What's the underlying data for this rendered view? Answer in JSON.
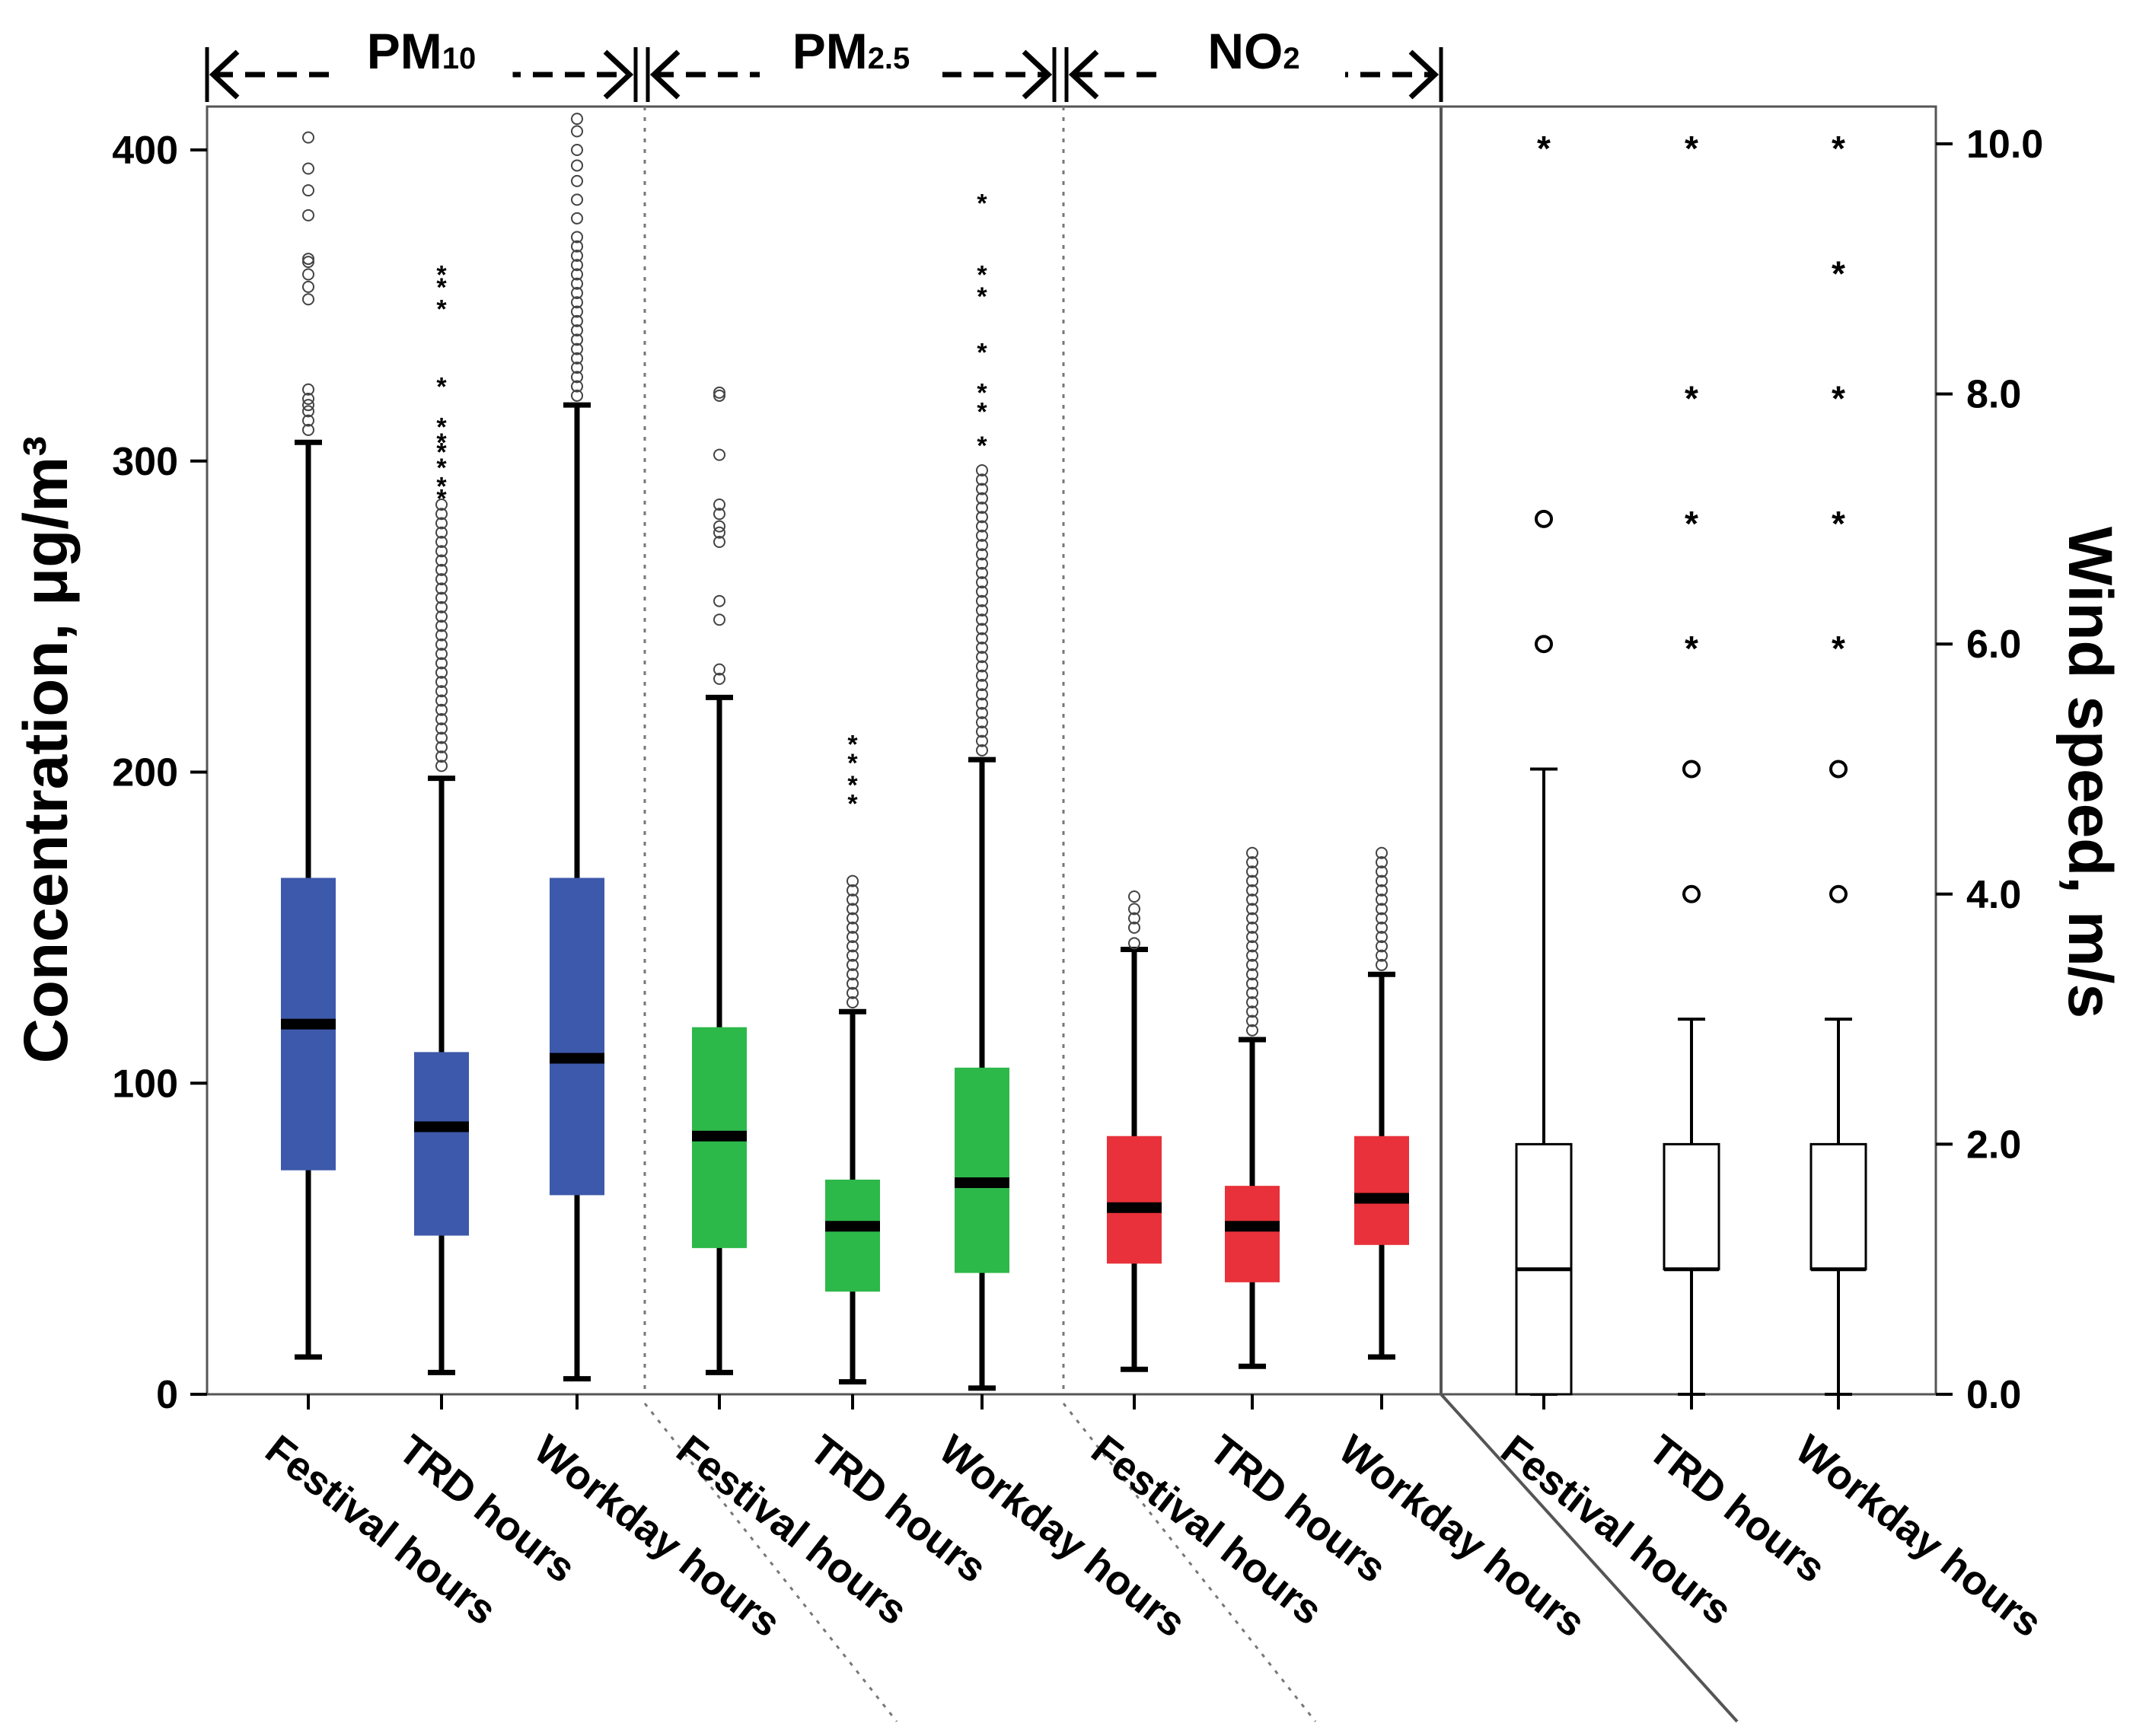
{
  "chart_data": {
    "type": "boxplot",
    "left_axis": {
      "label": "Concentration, μg/m³",
      "range": [
        0,
        400
      ],
      "ticks": [
        0,
        100,
        200,
        300,
        400
      ],
      "tick_labels": [
        "0",
        "100",
        "200",
        "300",
        "400"
      ]
    },
    "right_axis": {
      "label": "Wind speed, m/s",
      "range": [
        0,
        10
      ],
      "ticks": [
        0,
        2,
        4,
        6,
        8,
        10
      ],
      "tick_labels": [
        "0.0",
        "2.0",
        "4.0",
        "6.0",
        "8.0",
        "10.0"
      ]
    },
    "category_labels": [
      "Festival hours",
      "TRD hours",
      "Workday hours"
    ],
    "pollutant_groups": [
      {
        "name_main": "PM",
        "name_sub": "10",
        "color": "#3d59ab",
        "boxes": [
          {
            "category": "Festival hours",
            "whisker_low": 12,
            "q1": 72,
            "median": 119,
            "q3": 166,
            "whisker_high": 306,
            "outliers_circle": [
              310,
              313,
              316,
              318,
              320,
              323,
              352,
              356,
              360,
              364,
              365,
              379,
              387,
              394,
              404
            ],
            "outliers_star": []
          },
          {
            "category": "TRD hours",
            "whisker_low": 7,
            "q1": 51,
            "median": 86,
            "q3": 110,
            "whisker_high": 198,
            "outliers_circle": [
              202,
              205,
              208,
              211,
              214,
              217,
              220,
              223,
              226,
              229,
              232,
              235,
              238,
              241,
              244,
              247,
              250,
              253,
              256,
              259,
              262,
              265,
              268,
              271,
              274,
              277,
              280,
              283,
              286
            ],
            "outliers_star": [
              289,
              293,
              299,
              304,
              307,
              312,
              325,
              350,
              357,
              361
            ]
          },
          {
            "category": "Workday hours",
            "whisker_low": 5,
            "q1": 64,
            "median": 108,
            "q3": 166,
            "whisker_high": 318,
            "outliers_circle": [
              321,
              324,
              327,
              330,
              333,
              336,
              339,
              342,
              345,
              348,
              351,
              354,
              357,
              360,
              363,
              366,
              369,
              372,
              378,
              384,
              390,
              395,
              400,
              406,
              410
            ],
            "outliers_star": []
          }
        ]
      },
      {
        "name_main": "PM",
        "name_sub": "2.5",
        "color": "#2db84a",
        "boxes": [
          {
            "category": "Festival hours",
            "whisker_low": 7,
            "q1": 47,
            "median": 83,
            "q3": 118,
            "whisker_high": 224,
            "outliers_circle": [
              230,
              233,
              249,
              255,
              274,
              277,
              279,
              283,
              286,
              302,
              321,
              322
            ],
            "outliers_star": []
          },
          {
            "category": "TRD hours",
            "whisker_low": 4,
            "q1": 33,
            "median": 54,
            "q3": 69,
            "whisker_high": 123,
            "outliers_circle": [
              126,
              129,
              132,
              135,
              138,
              141,
              144,
              147,
              150,
              153,
              156,
              159,
              162,
              165
            ],
            "outliers_star": [
              191,
              197,
              204,
              210
            ]
          },
          {
            "category": "Workday hours",
            "whisker_low": 2,
            "q1": 39,
            "median": 68,
            "q3": 105,
            "whisker_high": 204,
            "outliers_circle": [
              207,
              210,
              213,
              216,
              219,
              222,
              225,
              228,
              231,
              234,
              237,
              240,
              243,
              246,
              249,
              252,
              255,
              258,
              261,
              264,
              267,
              270,
              273,
              276,
              279,
              282,
              285,
              288,
              291,
              294,
              297
            ],
            "outliers_star": [
              306,
              317,
              323,
              336,
              354,
              361,
              384
            ]
          }
        ]
      },
      {
        "name_main": "NO",
        "name_sub": "2",
        "color": "#e8313a",
        "boxes": [
          {
            "category": "Festival hours",
            "whisker_low": 8,
            "q1": 42,
            "median": 60,
            "q3": 83,
            "whisker_high": 143,
            "outliers_circle": [
              145,
              150,
              153,
              156,
              160
            ],
            "outliers_star": []
          },
          {
            "category": "TRD hours",
            "whisker_low": 9,
            "q1": 36,
            "median": 54,
            "q3": 67,
            "whisker_high": 114,
            "outliers_circle": [
              117,
              120,
              123,
              126,
              129,
              132,
              135,
              138,
              141,
              144,
              147,
              150,
              153,
              156,
              159,
              162,
              165,
              168,
              171,
              174
            ],
            "outliers_star": []
          },
          {
            "category": "Workday hours",
            "whisker_low": 12,
            "q1": 48,
            "median": 63,
            "q3": 83,
            "whisker_high": 135,
            "outliers_circle": [
              138,
              141,
              144,
              147,
              150,
              153,
              156,
              159,
              162,
              165,
              168,
              171,
              174
            ],
            "outliers_star": []
          }
        ]
      }
    ],
    "wind_speed": {
      "color": "#ffffff",
      "boxes": [
        {
          "category": "Festival hours",
          "whisker_low": 0,
          "q1": 0,
          "median": 1,
          "q3": 2,
          "whisker_high": 5,
          "outliers_circle": [
            6,
            7
          ],
          "outliers_star": [
            10
          ]
        },
        {
          "category": "TRD hours",
          "whisker_low": 0,
          "q1": 1,
          "median": 1,
          "q3": 2,
          "whisker_high": 3,
          "outliers_circle": [
            4,
            5
          ],
          "outliers_star": [
            6,
            7,
            8,
            10
          ]
        },
        {
          "category": "Workday hours",
          "whisker_low": 0,
          "q1": 1,
          "median": 1,
          "q3": 2,
          "whisker_high": 3,
          "outliers_circle": [
            4,
            5
          ],
          "outliers_star": [
            6,
            7,
            8,
            9,
            10
          ]
        }
      ]
    }
  }
}
